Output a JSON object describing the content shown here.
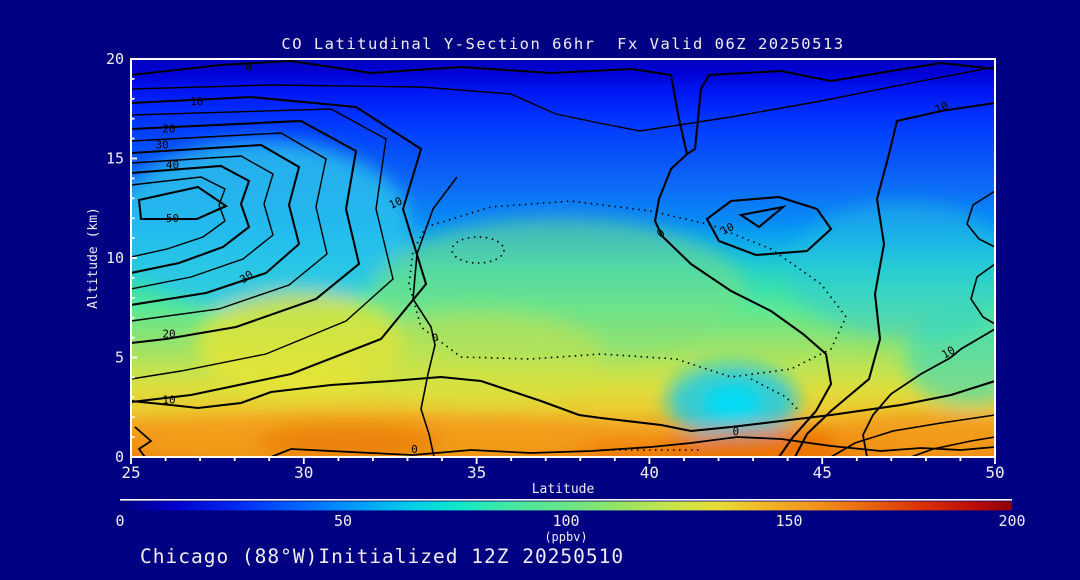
{
  "title": "CO Latitudinal Y-Section 66hr  Fx Valid 06Z 20250513",
  "footer": "Chicago (88°W)Initialized 12Z 20250510",
  "colors": {
    "background": "#000082",
    "frame": "#FFFFFF",
    "text": "#F2EDED",
    "contour_line": "#000000"
  },
  "chart_data": {
    "type": "contour",
    "title": "CO Latitudinal Y-Section 66hr  Fx Valid 06Z 20250513",
    "xlabel": "Latitude",
    "ylabel": "Altitude (km)",
    "xlim": [
      25,
      50
    ],
    "ylim": [
      0,
      20
    ],
    "x_ticks": [
      25,
      30,
      35,
      40,
      45,
      50
    ],
    "y_ticks": [
      0,
      5,
      10,
      15,
      20
    ],
    "x_minor_step": 1,
    "y_minor_step": 1,
    "contour_interval": 5,
    "labeled_levels": [
      0,
      10,
      20,
      30,
      40,
      50
    ],
    "negative_style": "dotted",
    "grid": false,
    "contour_labels": [
      {
        "level": 0,
        "lat": 28.4,
        "alt": 19.4,
        "angle": 0
      },
      {
        "level": 10,
        "lat": 26.9,
        "alt": 17.7,
        "angle": 0
      },
      {
        "level": 20,
        "lat": 26.1,
        "alt": 16.3,
        "angle": 0
      },
      {
        "level": 30,
        "lat": 25.9,
        "alt": 15.5,
        "angle": 0
      },
      {
        "level": 40,
        "lat": 26.2,
        "alt": 14.5,
        "angle": 0
      },
      {
        "level": 50,
        "lat": 26.2,
        "alt": 11.8,
        "angle": 0
      },
      {
        "level": 30,
        "lat": 28.4,
        "alt": 8.9,
        "angle": -35
      },
      {
        "level": 20,
        "lat": 26.1,
        "alt": 6.0,
        "angle": 0
      },
      {
        "level": 10,
        "lat": 32.7,
        "alt": 12.6,
        "angle": -25
      },
      {
        "level": 10,
        "lat": 26.1,
        "alt": 2.7,
        "angle": 0
      },
      {
        "level": 0,
        "lat": 33.8,
        "alt": 5.8,
        "angle": 0
      },
      {
        "level": 0,
        "lat": 33.2,
        "alt": 0.2,
        "angle": 0
      },
      {
        "level": 0,
        "lat": 40.4,
        "alt": 11.1,
        "angle": -40
      },
      {
        "level": 10,
        "lat": 42.3,
        "alt": 11.3,
        "angle": -25
      },
      {
        "level": 10,
        "lat": 48.5,
        "alt": 17.4,
        "angle": -25
      },
      {
        "level": 10,
        "lat": 48.7,
        "alt": 5.1,
        "angle": -30
      },
      {
        "level": 0,
        "lat": 42.5,
        "alt": 1.1,
        "angle": 0
      }
    ],
    "field_profile": [
      [
        20.0,
        "#0000BE"
      ],
      [
        19.3,
        "#0000D6"
      ],
      [
        18.4,
        "#0016F2"
      ],
      [
        17.2,
        "#0030FF"
      ],
      [
        16.0,
        "#0446FC"
      ],
      [
        14.6,
        "#0A5AF6"
      ],
      [
        13.2,
        "#0C72F6"
      ],
      [
        11.8,
        "#088CF6"
      ],
      [
        11.0,
        "#0AA4EE"
      ],
      [
        10.2,
        "#16BCDE"
      ],
      [
        9.4,
        "#24D2C8"
      ],
      [
        8.4,
        "#3CE0AE"
      ],
      [
        7.4,
        "#5CE894"
      ],
      [
        6.4,
        "#80E47A"
      ],
      [
        5.4,
        "#A0E366"
      ],
      [
        4.4,
        "#C2E350"
      ],
      [
        3.4,
        "#DEDE3C"
      ],
      [
        2.4,
        "#EACB30"
      ],
      [
        1.6,
        "#F2A824"
      ],
      [
        0.8,
        "#F28E14"
      ],
      [
        0.0,
        "#EE7E0A"
      ]
    ],
    "patches": [
      {
        "lat": 28.8,
        "alt": 11.6,
        "rlat": 4.3,
        "ralt": 4.3,
        "color": "#2CC4EC",
        "opacity": 0.8
      },
      {
        "lat": 29.9,
        "alt": 5.7,
        "rlat": 3.0,
        "ralt": 2.6,
        "color": "#E9E432",
        "opacity": 0.75
      },
      {
        "lat": 37.4,
        "alt": 8.4,
        "rlat": 5.4,
        "ralt": 3.6,
        "color": "#84E07E",
        "opacity": 0.5
      },
      {
        "lat": 35.1,
        "alt": 4.9,
        "rlat": 3.6,
        "ralt": 2.4,
        "color": "#D2E342",
        "opacity": 0.45
      },
      {
        "lat": 42.4,
        "alt": 2.8,
        "rlat": 1.9,
        "ralt": 1.9,
        "color": "#12C8F2",
        "opacity": 0.8
      },
      {
        "lat": 42.4,
        "alt": 2.7,
        "rlat": 0.85,
        "ralt": 0.95,
        "color": "#00DCFA",
        "opacity": 0.9
      },
      {
        "lat": 47.3,
        "alt": 9.4,
        "rlat": 3.3,
        "ralt": 3.4,
        "color": "#2CC6DE",
        "opacity": 0.45
      },
      {
        "lat": 49.2,
        "alt": 4.9,
        "rlat": 1.8,
        "ralt": 2.4,
        "color": "#28D8CC",
        "opacity": 0.55
      },
      {
        "lat": 31.6,
        "alt": 0.7,
        "rlat": 6.8,
        "ralt": 1.5,
        "color": "#F2A01E",
        "opacity": 0.75
      },
      {
        "lat": 31.3,
        "alt": 0.75,
        "rlat": 2.7,
        "ralt": 0.85,
        "color": "#EA7A06",
        "opacity": 0.8
      },
      {
        "lat": 43.8,
        "alt": 0.5,
        "rlat": 3.5,
        "ralt": 0.85,
        "color": "#E86F00",
        "opacity": 0.8
      },
      {
        "lat": 48.2,
        "alt": 0.9,
        "rlat": 3.0,
        "ralt": 1.3,
        "color": "#F29C1C",
        "opacity": 0.75
      }
    ],
    "colorbar": {
      "label": "(ppbv)",
      "range": [
        0,
        200
      ],
      "ticks": [
        0,
        50,
        100,
        150,
        200
      ],
      "stops": [
        [
          0.0,
          "#000082"
        ],
        [
          0.06,
          "#0000C8"
        ],
        [
          0.13,
          "#0028F0"
        ],
        [
          0.2,
          "#0064FF"
        ],
        [
          0.27,
          "#00A0F8"
        ],
        [
          0.33,
          "#00D0E8"
        ],
        [
          0.38,
          "#10E8C8"
        ],
        [
          0.44,
          "#48E8A0"
        ],
        [
          0.5,
          "#68E488"
        ],
        [
          0.56,
          "#96E464"
        ],
        [
          0.62,
          "#C8E44A"
        ],
        [
          0.67,
          "#E8DC38"
        ],
        [
          0.72,
          "#F0B828"
        ],
        [
          0.78,
          "#F0941C"
        ],
        [
          0.84,
          "#E86410"
        ],
        [
          0.9,
          "#D83008"
        ],
        [
          0.96,
          "#B80E04"
        ],
        [
          1.0,
          "#8E0000"
        ]
      ]
    }
  }
}
